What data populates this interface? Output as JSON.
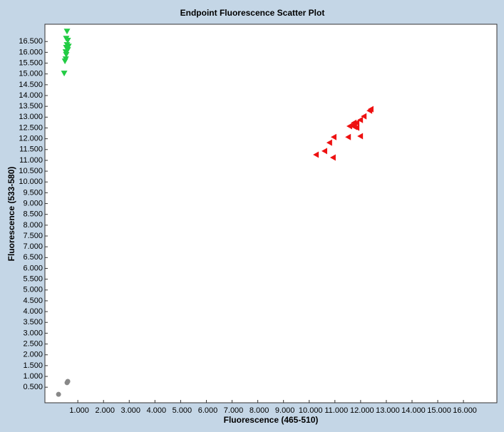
{
  "chart_data": {
    "type": "scatter",
    "title": "Endpoint Fluorescence Scatter Plot",
    "x_label": "Fluorescence (465-510)",
    "y_label": "Fluorescence (533-580)",
    "xlim": [
      -0.28,
      17.3
    ],
    "ylim": [
      -0.22,
      17.3
    ],
    "xticks": [
      {
        "value": 1,
        "label": "1.000"
      },
      {
        "value": 2,
        "label": "2.000"
      },
      {
        "value": 3,
        "label": "3.000"
      },
      {
        "value": 4,
        "label": "4.000"
      },
      {
        "value": 5,
        "label": "5.000"
      },
      {
        "value": 6,
        "label": "6.000"
      },
      {
        "value": 7,
        "label": "7.000"
      },
      {
        "value": 8,
        "label": "8.000"
      },
      {
        "value": 9,
        "label": "9.000"
      },
      {
        "value": 10,
        "label": "10.000"
      },
      {
        "value": 11,
        "label": "11.000"
      },
      {
        "value": 12,
        "label": "12.000"
      },
      {
        "value": 13,
        "label": "13.000"
      },
      {
        "value": 14,
        "label": "14.000"
      },
      {
        "value": 15,
        "label": "15.000"
      },
      {
        "value": 16,
        "label": "16.000"
      }
    ],
    "yticks": [
      {
        "value": 0.5,
        "label": "0.500"
      },
      {
        "value": 1,
        "label": "1.000"
      },
      {
        "value": 1.5,
        "label": "1.500"
      },
      {
        "value": 2,
        "label": "2.000"
      },
      {
        "value": 2.5,
        "label": "2.500"
      },
      {
        "value": 3,
        "label": "3.000"
      },
      {
        "value": 3.5,
        "label": "3.500"
      },
      {
        "value": 4,
        "label": "4.000"
      },
      {
        "value": 4.5,
        "label": "4.500"
      },
      {
        "value": 5,
        "label": "5.000"
      },
      {
        "value": 5.5,
        "label": "5.500"
      },
      {
        "value": 6,
        "label": "6.000"
      },
      {
        "value": 6.5,
        "label": "6.500"
      },
      {
        "value": 7,
        "label": "7.000"
      },
      {
        "value": 7.5,
        "label": "7.500"
      },
      {
        "value": 8,
        "label": "8.000"
      },
      {
        "value": 8.5,
        "label": "8.500"
      },
      {
        "value": 9,
        "label": "9.000"
      },
      {
        "value": 9.5,
        "label": "9.500"
      },
      {
        "value": 10,
        "label": "10.000"
      },
      {
        "value": 10.5,
        "label": "10.500"
      },
      {
        "value": 11,
        "label": "11.000"
      },
      {
        "value": 11.5,
        "label": "11.500"
      },
      {
        "value": 12,
        "label": "12.000"
      },
      {
        "value": 12.5,
        "label": "12.500"
      },
      {
        "value": 13,
        "label": "13.000"
      },
      {
        "value": 13.5,
        "label": "13.500"
      },
      {
        "value": 14,
        "label": "14.000"
      },
      {
        "value": 14.5,
        "label": "14.500"
      },
      {
        "value": 15,
        "label": "15.000"
      },
      {
        "value": 15.5,
        "label": "15.500"
      },
      {
        "value": 16,
        "label": "16.000"
      },
      {
        "value": 16.5,
        "label": "16.500"
      }
    ],
    "series": [
      {
        "color": "#22cc44",
        "marker": "triangle-down",
        "x": [
          0.58,
          0.55,
          0.61,
          0.58,
          0.64,
          0.55,
          0.61,
          0.53,
          0.55,
          0.53,
          0.5,
          0.47
        ],
        "values": [
          16.96,
          16.63,
          16.54,
          16.34,
          16.27,
          16.21,
          16.11,
          16.01,
          15.88,
          15.68,
          15.58,
          15.02
        ]
      },
      {
        "color": "#ee1111",
        "marker": "triangle-left",
        "x": [
          12.39,
          12.34,
          12.12,
          11.98,
          11.84,
          11.73,
          11.67,
          11.56,
          11.84,
          11.75,
          10.95,
          11.51,
          11.98,
          10.78,
          10.59,
          10.26,
          10.92
        ],
        "values": [
          13.37,
          13.3,
          13.04,
          12.87,
          12.74,
          12.74,
          12.61,
          12.58,
          12.51,
          12.55,
          12.08,
          12.08,
          12.12,
          11.82,
          11.43,
          11.26,
          11.13
        ]
      },
      {
        "color": "#888888",
        "marker": "circle",
        "x": [
          0.25,
          0.61,
          0.58
        ],
        "values": [
          0.17,
          0.77,
          0.71
        ]
      }
    ]
  }
}
